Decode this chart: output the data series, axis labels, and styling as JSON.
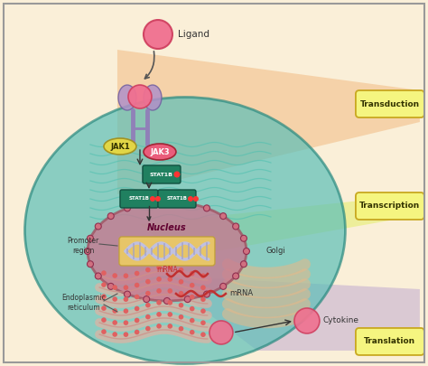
{
  "bg_color": "#faefd8",
  "cell_color": "#5bbfb8",
  "cell_edge": "#2a8a80",
  "nucleus_color": "#c87090",
  "nucleus_inner": "#d08898",
  "nucleus_edge": "#a05060",
  "er_color": "#e8b0a0",
  "er_stripe_color": "#f0c8b8",
  "golgi_color": "#e8c8a0",
  "transduction_cone_color": "#f0b070",
  "transcription_cone_color": "#e8ee80",
  "translation_cone_color": "#c0aad0",
  "label_box_color": "#f5f580",
  "label_box_edge": "#c8a820",
  "jak1_color": "#e8d840",
  "jak3_color": "#f05878",
  "stat_color": "#208060",
  "ligand_color": "#f07090",
  "receptor_color": "#b090c0",
  "dna_strand1": "#c0c0e8",
  "dna_strand2": "#c0c0e8",
  "dna_box_color": "#f0d070",
  "mrna_color": "#c03030",
  "wavy_color": "#40b0a0",
  "labels": {
    "ligand": "Ligand",
    "transduction": "Transduction",
    "transcription": "Transcription",
    "translation": "Translation",
    "nucleus": "Nucleus",
    "mrna_in": "mRNA",
    "mrna_out": "mRNA",
    "promoter": "Promoter\nregion",
    "er": "Endoplasmic\nreticulum",
    "golgi": "Golgi",
    "cytokine": "Cytokine",
    "jak1": "JAK1",
    "jak3": "JAK3",
    "stat1": "STAT1B",
    "stat2": "STAT1B"
  }
}
